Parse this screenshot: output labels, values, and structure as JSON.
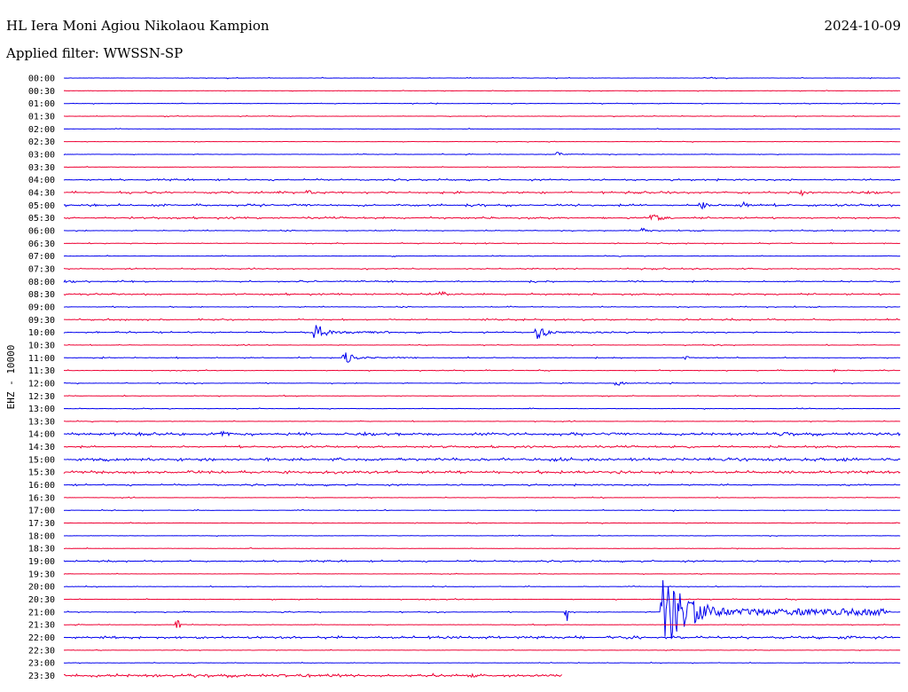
{
  "header": {
    "station": "HL Iera Moni Agiou Nikolaou Kampion",
    "date": "2024-10-09",
    "filter_text": "Applied filter: WWSSN-SP"
  },
  "colors": {
    "odd": "#0000ee",
    "even": "#ee0033",
    "text": "#000000"
  },
  "chart_data": {
    "type": "line",
    "title": "HL Iera Moni Agiou Nikolaou Kampion",
    "ylabel": "EHZ - 10000",
    "xlabel": "",
    "grid": false,
    "legend": "none",
    "rows": [
      {
        "time": "00:00",
        "activity": 0.05,
        "events": []
      },
      {
        "time": "00:30",
        "activity": 0.03,
        "events": []
      },
      {
        "time": "01:00",
        "activity": 0.05,
        "events": []
      },
      {
        "time": "01:30",
        "activity": 0.04,
        "events": []
      },
      {
        "time": "02:00",
        "activity": 0.02,
        "events": []
      },
      {
        "time": "02:30",
        "activity": 0.02,
        "events": []
      },
      {
        "time": "03:00",
        "activity": 0.05,
        "events": [
          {
            "pos": 0.59,
            "amp": 5,
            "dur": 0.01
          }
        ]
      },
      {
        "time": "03:30",
        "activity": 0.03,
        "events": []
      },
      {
        "time": "04:00",
        "activity": 0.25,
        "events": []
      },
      {
        "time": "04:30",
        "activity": 0.35,
        "events": [
          {
            "pos": 0.29,
            "amp": 6,
            "dur": 0.02
          },
          {
            "pos": 0.88,
            "amp": 5,
            "dur": 0.02
          }
        ]
      },
      {
        "time": "05:00",
        "activity": 0.4,
        "events": [
          {
            "pos": 0.76,
            "amp": 6,
            "dur": 0.02
          },
          {
            "pos": 0.81,
            "amp": 6,
            "dur": 0.02
          }
        ]
      },
      {
        "time": "05:30",
        "activity": 0.3,
        "events": [
          {
            "pos": 0.7,
            "amp": 5,
            "dur": 0.04
          }
        ]
      },
      {
        "time": "06:00",
        "activity": 0.15,
        "events": [
          {
            "pos": 0.69,
            "amp": 4,
            "dur": 0.02
          }
        ]
      },
      {
        "time": "06:30",
        "activity": 0.08,
        "events": []
      },
      {
        "time": "07:00",
        "activity": 0.06,
        "events": []
      },
      {
        "time": "07:30",
        "activity": 0.2,
        "events": []
      },
      {
        "time": "08:00",
        "activity": 0.25,
        "events": []
      },
      {
        "time": "08:30",
        "activity": 0.25,
        "events": [
          {
            "pos": 0.45,
            "amp": 5,
            "dur": 0.02
          }
        ]
      },
      {
        "time": "09:00",
        "activity": 0.15,
        "events": []
      },
      {
        "time": "09:30",
        "activity": 0.25,
        "events": []
      },
      {
        "time": "10:00",
        "activity": 0.2,
        "events": [
          {
            "pos": 0.3,
            "amp": 15,
            "dur": 0.03
          },
          {
            "pos": 0.565,
            "amp": 10,
            "dur": 0.03
          }
        ]
      },
      {
        "time": "10:30",
        "activity": 0.08,
        "events": []
      },
      {
        "time": "11:00",
        "activity": 0.15,
        "events": [
          {
            "pos": 0.335,
            "amp": 8,
            "dur": 0.03
          },
          {
            "pos": 0.74,
            "amp": 3,
            "dur": 0.02
          }
        ]
      },
      {
        "time": "11:30",
        "activity": 0.08,
        "events": [
          {
            "pos": 0.92,
            "amp": 3,
            "dur": 0.01
          }
        ]
      },
      {
        "time": "12:00",
        "activity": 0.1,
        "events": [
          {
            "pos": 0.66,
            "amp": 4,
            "dur": 0.02
          }
        ]
      },
      {
        "time": "12:30",
        "activity": 0.06,
        "events": []
      },
      {
        "time": "13:00",
        "activity": 0.04,
        "events": []
      },
      {
        "time": "13:30",
        "activity": 0.06,
        "events": []
      },
      {
        "time": "14:00",
        "activity": 0.55,
        "events": [
          {
            "pos": 0.19,
            "amp": 5,
            "dur": 0.02
          },
          {
            "pos": 0.86,
            "amp": 4,
            "dur": 0.02
          }
        ]
      },
      {
        "time": "14:30",
        "activity": 0.35,
        "events": []
      },
      {
        "time": "15:00",
        "activity": 0.55,
        "events": []
      },
      {
        "time": "15:30",
        "activity": 0.55,
        "events": []
      },
      {
        "time": "16:00",
        "activity": 0.25,
        "events": []
      },
      {
        "time": "16:30",
        "activity": 0.05,
        "events": []
      },
      {
        "time": "17:00",
        "activity": 0.06,
        "events": [
          {
            "pos": 0.73,
            "amp": 3,
            "dur": 0.01
          }
        ]
      },
      {
        "time": "17:30",
        "activity": 0.05,
        "events": []
      },
      {
        "time": "18:00",
        "activity": 0.02,
        "events": []
      },
      {
        "time": "18:30",
        "activity": 0.02,
        "events": []
      },
      {
        "time": "19:00",
        "activity": 0.25,
        "events": []
      },
      {
        "time": "19:30",
        "activity": 0.04,
        "events": []
      },
      {
        "time": "20:00",
        "activity": 0.06,
        "events": []
      },
      {
        "time": "20:30",
        "activity": 0.1,
        "events": []
      },
      {
        "time": "21:00",
        "activity": 0.1,
        "events": [
          {
            "pos": 0.715,
            "amp": 45,
            "dur": 0.09
          },
          {
            "pos": 0.84,
            "amp": 4,
            "dur": 0.03
          },
          {
            "pos": 0.6,
            "amp": 10,
            "dur": 0.002
          }
        ]
      },
      {
        "time": "21:30",
        "activity": 0.05,
        "events": [
          {
            "pos": 0.135,
            "amp": 8,
            "dur": 0.004
          }
        ]
      },
      {
        "time": "22:00",
        "activity": 0.45,
        "events": []
      },
      {
        "time": "22:30",
        "activity": 0.03,
        "events": []
      },
      {
        "time": "23:00",
        "activity": 0.04,
        "events": []
      },
      {
        "time": "23:30",
        "activity": 0.6,
        "events": [],
        "end": 0.595
      }
    ]
  }
}
